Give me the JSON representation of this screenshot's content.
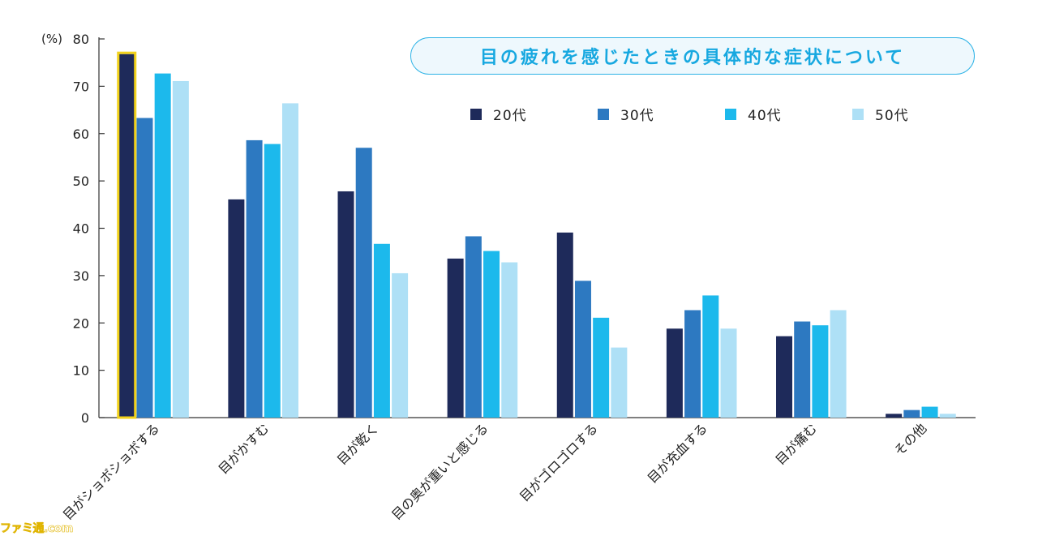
{
  "chart_data": {
    "type": "bar",
    "title": "目の疲れを感じたときの具体的な症状について",
    "ylabel": "(%)",
    "ylim": [
      0,
      80
    ],
    "yticks": [
      0,
      10,
      20,
      30,
      40,
      50,
      60,
      70,
      80
    ],
    "legend_position": "top-right",
    "grid": false,
    "categories": [
      "目がショボショボする",
      "目がかすむ",
      "目が乾く",
      "目の奥が重いと感じる",
      "目がゴロゴロする",
      "目が充血する",
      "目が痛む",
      "その他"
    ],
    "series": [
      {
        "name": "20代",
        "color": "#1e2a5a",
        "values": [
          76.8,
          46.1,
          47.8,
          33.6,
          39.1,
          18.8,
          17.2,
          0.8
        ]
      },
      {
        "name": "30代",
        "color": "#2d79c1",
        "values": [
          63.3,
          58.6,
          57.0,
          38.3,
          28.9,
          22.7,
          20.3,
          1.6
        ]
      },
      {
        "name": "40代",
        "color": "#1cb9ec",
        "values": [
          72.7,
          57.8,
          36.7,
          35.2,
          21.1,
          25.8,
          19.5,
          2.3
        ]
      },
      {
        "name": "50代",
        "color": "#aee0f6",
        "values": [
          71.1,
          66.4,
          30.5,
          32.8,
          14.8,
          18.8,
          22.7,
          0.8
        ]
      }
    ],
    "highlight": {
      "category_index": 0,
      "series_index": 0,
      "color": "#f2d21b"
    }
  },
  "watermark": "ファミ通.com"
}
